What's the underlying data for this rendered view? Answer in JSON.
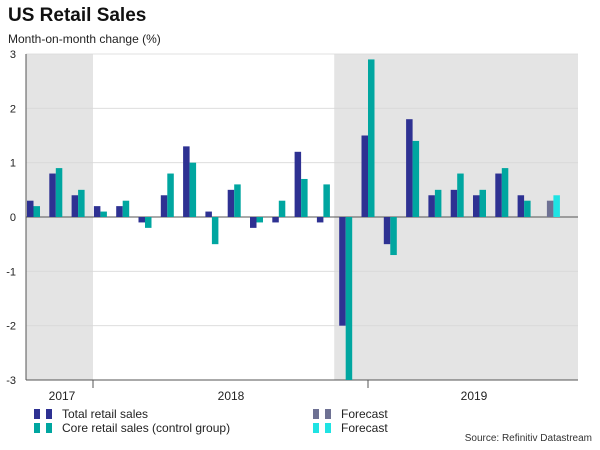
{
  "chart_data": {
    "type": "bar",
    "title": "US Retail Sales",
    "subtitle": "Month-on-month change (%)",
    "xlabel": "",
    "ylabel": "",
    "ylim": [
      -3,
      3
    ],
    "yticks": [
      "-3",
      "-2",
      "-1",
      "0",
      "1",
      "2",
      "3"
    ],
    "grid": true,
    "legend_position": "bottom",
    "year_labels": [
      "2017",
      "2018",
      "2019"
    ],
    "categories": [
      "2017-10",
      "2017-11",
      "2017-12",
      "2018-01",
      "2018-02",
      "2018-03",
      "2018-04",
      "2018-05",
      "2018-06",
      "2018-07",
      "2018-08",
      "2018-09",
      "2018-10",
      "2018-11",
      "2018-12",
      "2019-01",
      "2019-02",
      "2019-03",
      "2019-04",
      "2019-05",
      "2019-06",
      "2019-07",
      "2019-08",
      "2019-09",
      "2019-10",
      "2019-11",
      "2019-12"
    ],
    "shaded_periods": [
      [
        "2017-10",
        "2017-12"
      ],
      [
        "2018-12",
        "2019-12"
      ]
    ],
    "series": [
      {
        "name": "Total retail sales",
        "color": "#2e3192",
        "values": [
          0.3,
          0.8,
          0.4,
          0.2,
          0.2,
          -0.1,
          0.4,
          1.3,
          0.1,
          0.5,
          -0.2,
          -0.1,
          1.2,
          -0.1,
          -2.0,
          1.5,
          -0.5,
          1.8,
          0.4,
          0.5,
          0.4,
          0.8,
          0.4,
          null,
          null,
          null,
          null
        ]
      },
      {
        "name": "Core retail sales (control group)",
        "color": "#00a6a0",
        "values": [
          0.2,
          0.9,
          0.5,
          0.1,
          0.3,
          -0.2,
          0.8,
          1.0,
          -0.5,
          0.6,
          -0.1,
          0.3,
          0.7,
          0.6,
          -3.0,
          2.9,
          -0.7,
          1.4,
          0.5,
          0.8,
          0.5,
          0.9,
          0.3,
          null,
          null,
          null,
          null
        ]
      }
    ],
    "forecast": [
      {
        "name": "Forecast",
        "color": "#6e7193",
        "category": "2019-09",
        "value": 0.3
      },
      {
        "name": "Forecast",
        "color": "#1fe3e3",
        "category": "2019-09",
        "value": 0.4
      }
    ],
    "legend": [
      {
        "label": "Total retail sales",
        "colors": [
          "#2e3192",
          "#2e3192"
        ]
      },
      {
        "label": "Core retail sales (control group)",
        "colors": [
          "#00a6a0",
          "#00a6a0"
        ]
      },
      {
        "label": "Forecast",
        "colors": [
          "#6e7193",
          "#6e7193"
        ]
      },
      {
        "label": "Forecast",
        "colors": [
          "#1fe3e3",
          "#1fe3e3"
        ]
      }
    ],
    "source": "Source: Refinitiv Datastream"
  }
}
